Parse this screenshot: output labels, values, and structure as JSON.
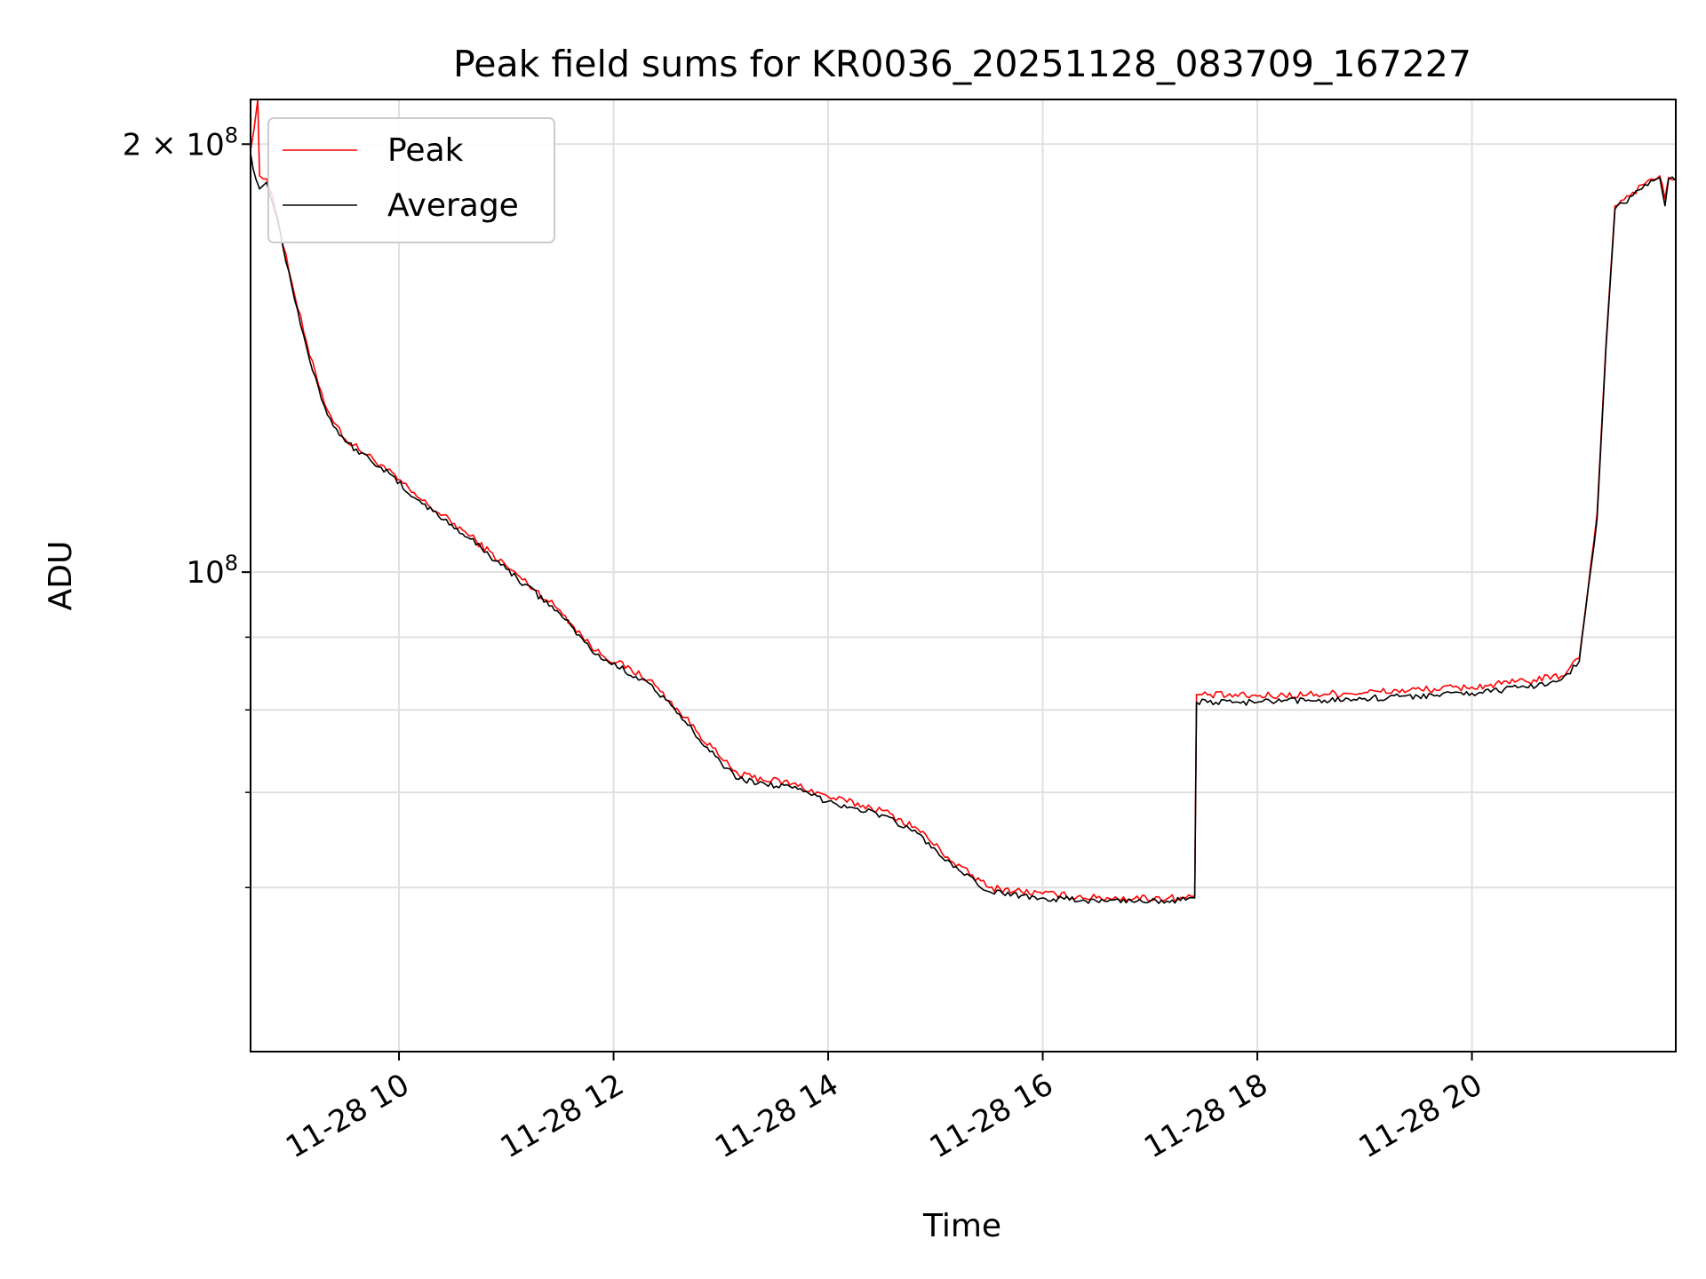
{
  "chart_data": {
    "type": "line",
    "title": "Peak field sums for KR0036_20251128_083709_167227",
    "xlabel": "Time",
    "ylabel": "ADU",
    "yscale": "log",
    "grid": true,
    "legend": {
      "placement": "top-left"
    },
    "x_range": [
      "2025-11-28 08:37",
      "2025-11-28 21:54"
    ],
    "ylim": [
      46000000,
      215000000
    ],
    "x_ticks": [
      {
        "value": "2025-11-28 10:00",
        "label": "11-28 10"
      },
      {
        "value": "2025-11-28 12:00",
        "label": "11-28 12"
      },
      {
        "value": "2025-11-28 14:00",
        "label": "11-28 14"
      },
      {
        "value": "2025-11-28 16:00",
        "label": "11-28 16"
      },
      {
        "value": "2025-11-28 18:00",
        "label": "11-28 18"
      },
      {
        "value": "2025-11-28 20:00",
        "label": "11-28 20"
      }
    ],
    "y_ticks": [
      {
        "value": 200000000,
        "base": "2 × 10",
        "exp": "8"
      },
      {
        "value": 100000000,
        "base": "10",
        "exp": "8"
      }
    ],
    "y_minor_ticks": [
      60000000,
      70000000,
      80000000,
      90000000
    ],
    "series": [
      {
        "name": "Peak",
        "color": "#ff0000",
        "x": [
          "2025-11-28 08:37",
          "2025-11-28 08:41",
          "2025-11-28 08:42",
          "2025-11-28 08:46",
          "2025-11-28 08:52",
          "2025-11-28 09:00",
          "2025-11-28 09:10",
          "2025-11-28 09:20",
          "2025-11-28 09:30",
          "2025-11-28 09:50",
          "2025-11-28 10:10",
          "2025-11-28 10:40",
          "2025-11-28 11:00",
          "2025-11-28 11:30",
          "2025-11-28 11:50",
          "2025-11-28 12:20",
          "2025-11-28 12:40",
          "2025-11-28 13:00",
          "2025-11-28 13:10",
          "2025-11-28 13:40",
          "2025-11-28 14:00",
          "2025-11-28 14:30",
          "2025-11-28 14:50",
          "2025-11-28 15:10",
          "2025-11-28 15:30",
          "2025-11-28 16:00",
          "2025-11-28 16:30",
          "2025-11-28 17:20",
          "2025-11-28 17:25",
          "2025-11-28 17:26",
          "2025-11-28 18:00",
          "2025-11-28 19:00",
          "2025-11-28 20:00",
          "2025-11-28 20:30",
          "2025-11-28 20:50",
          "2025-11-28 21:00",
          "2025-11-28 21:10",
          "2025-11-28 21:15",
          "2025-11-28 21:20",
          "2025-11-28 21:30",
          "2025-11-28 21:40",
          "2025-11-28 21:45",
          "2025-11-28 21:48",
          "2025-11-28 21:50",
          "2025-11-28 21:54"
        ],
        "y": [
          198000000,
          215000000,
          190000000,
          189000000,
          178000000,
          160000000,
          142000000,
          130000000,
          124000000,
          119000000,
          113000000,
          106000000,
          101000000,
          94000000,
          88000000,
          84000000,
          79000000,
          74000000,
          72000000,
          71000000,
          69500000,
          68000000,
          66000000,
          62500000,
          60000000,
          59400000,
          59000000,
          59000000,
          59200000,
          82000000,
          81800000,
          82300000,
          83000000,
          83800000,
          84500000,
          87000000,
          110000000,
          145000000,
          181000000,
          185000000,
          189000000,
          190000000,
          183000000,
          189500000,
          189000000
        ]
      },
      {
        "name": "Average",
        "color": "#000000",
        "x": [
          "2025-11-28 08:37",
          "2025-11-28 08:40",
          "2025-11-28 08:42",
          "2025-11-28 08:46",
          "2025-11-28 08:52",
          "2025-11-28 09:00",
          "2025-11-28 09:10",
          "2025-11-28 09:20",
          "2025-11-28 09:30",
          "2025-11-28 09:50",
          "2025-11-28 10:10",
          "2025-11-28 10:40",
          "2025-11-28 11:00",
          "2025-11-28 11:30",
          "2025-11-28 11:50",
          "2025-11-28 12:20",
          "2025-11-28 12:40",
          "2025-11-28 13:00",
          "2025-11-28 13:10",
          "2025-11-28 13:40",
          "2025-11-28 14:00",
          "2025-11-28 14:30",
          "2025-11-28 14:50",
          "2025-11-28 15:10",
          "2025-11-28 15:30",
          "2025-11-28 16:00",
          "2025-11-28 16:30",
          "2025-11-28 17:20",
          "2025-11-28 17:25",
          "2025-11-28 17:26",
          "2025-11-28 18:00",
          "2025-11-28 19:00",
          "2025-11-28 20:00",
          "2025-11-28 20:30",
          "2025-11-28 20:50",
          "2025-11-28 21:00",
          "2025-11-28 21:10",
          "2025-11-28 21:15",
          "2025-11-28 21:20",
          "2025-11-28 21:30",
          "2025-11-28 21:40",
          "2025-11-28 21:45",
          "2025-11-28 21:48",
          "2025-11-28 21:50",
          "2025-11-28 21:54"
        ],
        "y": [
          197000000,
          189000000,
          186000000,
          188000000,
          177000000,
          159000000,
          141000000,
          129000000,
          123500000,
          118500000,
          112500000,
          105500000,
          100500000,
          93500000,
          87500000,
          83500000,
          78500000,
          73500000,
          71500000,
          70500000,
          69000000,
          67500000,
          65500000,
          62000000,
          59600000,
          59000000,
          58700000,
          58800000,
          59000000,
          81000000,
          81000000,
          81500000,
          82200000,
          83000000,
          84000000,
          86500000,
          109000000,
          144000000,
          180000000,
          184000000,
          188500000,
          189500000,
          181000000,
          189000000,
          188500000
        ]
      }
    ]
  }
}
